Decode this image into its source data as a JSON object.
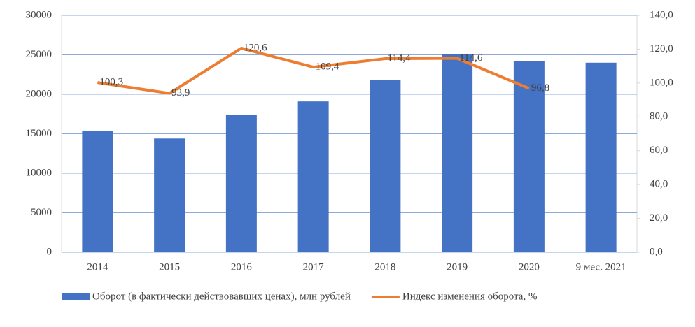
{
  "chart_data": {
    "type": "bar",
    "categories": [
      "2014",
      "2015",
      "2016",
      "2017",
      "2018",
      "2019",
      "2020",
      "9 мес. 2021"
    ],
    "series": [
      {
        "name": "Оборот (в фактически действовавших ценах), млн рублей",
        "type": "bar",
        "color": "#4472c4",
        "values": [
          15400,
          14400,
          17400,
          19100,
          21800,
          25100,
          24200,
          24000
        ]
      },
      {
        "name": "Индекс изменения оборота, %",
        "type": "line",
        "axis": "y2",
        "color": "#ed7d31",
        "values": [
          100.3,
          93.9,
          120.6,
          109.4,
          114.4,
          114.6,
          96.8,
          null
        ],
        "value_labels": [
          "100,3",
          "93,9",
          "120,6",
          "109,4",
          "114,4",
          "114,6",
          "96,8",
          null
        ]
      }
    ],
    "ylim": [
      0,
      30000
    ],
    "yticks": [
      0,
      5000,
      10000,
      15000,
      20000,
      25000,
      30000
    ],
    "y2lim": [
      0,
      140
    ],
    "y2ticks": [
      {
        "value": 0,
        "label": "0,0"
      },
      {
        "value": 20,
        "label": "20,0"
      },
      {
        "value": 40,
        "label": "40,0"
      },
      {
        "value": 60,
        "label": "60,0"
      },
      {
        "value": 80,
        "label": "80,0"
      },
      {
        "value": 100,
        "label": "100,0"
      },
      {
        "value": 120,
        "label": "120,0"
      },
      {
        "value": 140,
        "label": "140,0"
      }
    ],
    "grid": true,
    "legend": "bottom"
  }
}
